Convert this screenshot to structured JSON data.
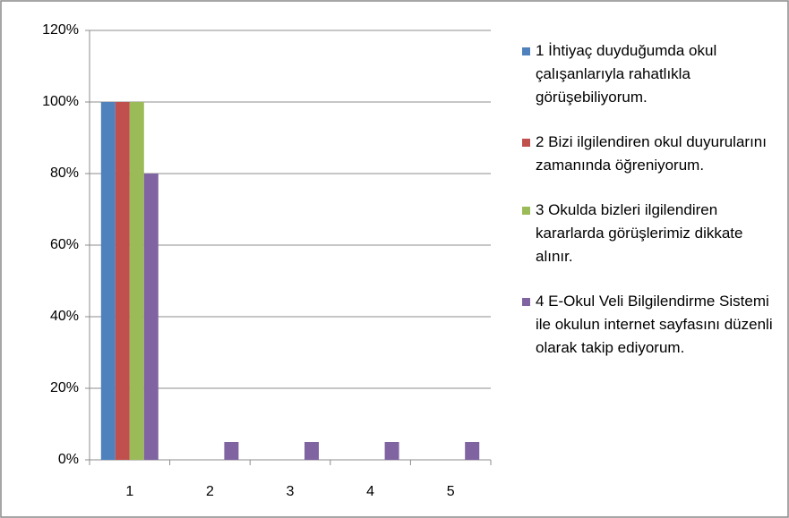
{
  "chart_data": {
    "type": "bar",
    "categories": [
      "1",
      "2",
      "3",
      "4",
      "5"
    ],
    "series": [
      {
        "name": "1 İhtiyaç duyduğumda okul çalışanlarıyla rahatlıkla görüşebiliyorum.",
        "color": "#4f81bd",
        "values": [
          100,
          0,
          0,
          0,
          0
        ]
      },
      {
        "name": "2 Bizi ilgilendiren okul duyurularını zamanında öğreniyorum.",
        "color": "#c0504d",
        "values": [
          100,
          0,
          0,
          0,
          0
        ]
      },
      {
        "name": "3 Okulda bizleri ilgilendiren kararlarda görüşlerimiz dikkate alınır.",
        "color": "#9bbb59",
        "values": [
          100,
          0,
          0,
          0,
          0
        ]
      },
      {
        "name": "4 E-Okul Veli Bilgilendirme Sistemi ile okulun internet sayfasını düzenli olarak takip ediyorum.",
        "color": "#8064a2",
        "values": [
          80,
          5,
          5,
          5,
          5
        ]
      }
    ],
    "ylim": [
      0,
      120
    ],
    "yticks": [
      {
        "value": 0,
        "label": "0%"
      },
      {
        "value": 20,
        "label": "20%"
      },
      {
        "value": 40,
        "label": "40%"
      },
      {
        "value": 60,
        "label": "60%"
      },
      {
        "value": 80,
        "label": "80%"
      },
      {
        "value": 100,
        "label": "100%"
      },
      {
        "value": 120,
        "label": "120%"
      }
    ],
    "grid": true,
    "legend": "right"
  }
}
